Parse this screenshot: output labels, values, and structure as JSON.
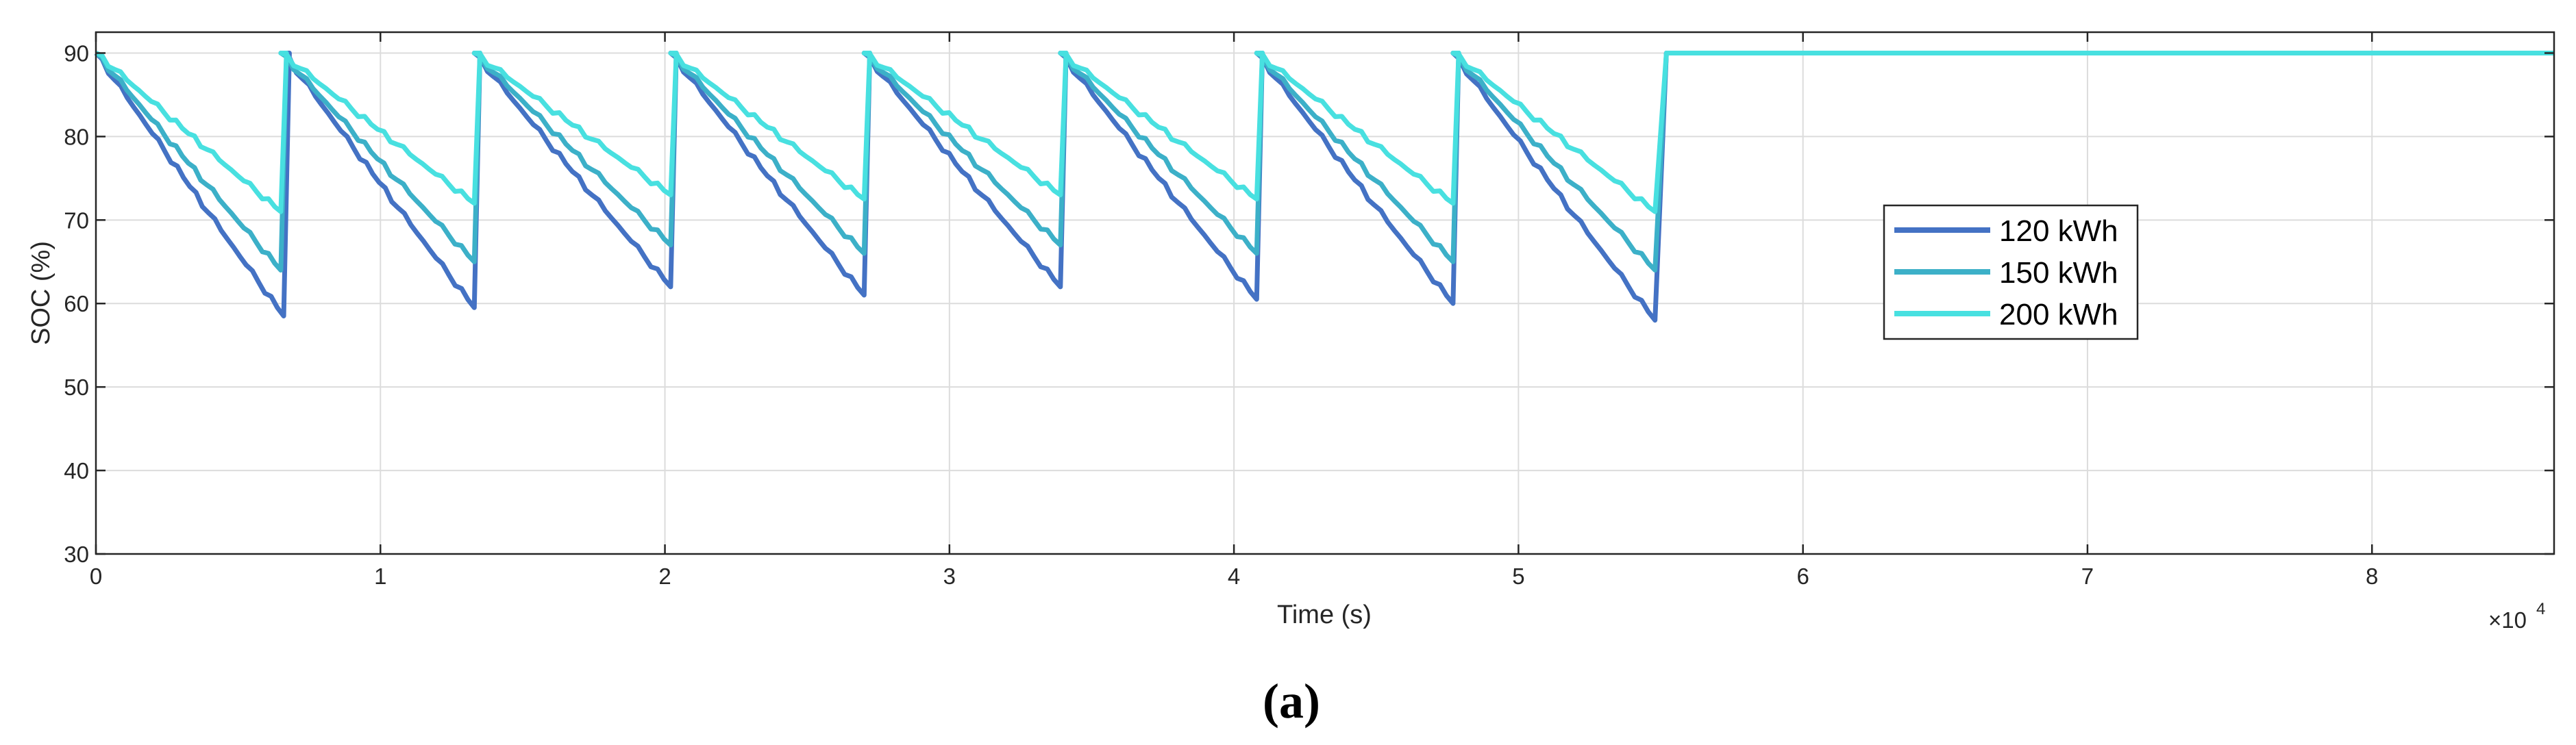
{
  "chart_data": {
    "type": "line",
    "xlabel": "Time (s)",
    "ylabel": "SOC (%)",
    "x_multiplier": "×10",
    "x_multiplier_exp": "4",
    "xlim": [
      0,
      8.64
    ],
    "ylim": [
      30,
      92.5
    ],
    "x_ticks": [
      0,
      1,
      2,
      3,
      4,
      5,
      6,
      7,
      8
    ],
    "y_ticks": [
      30,
      40,
      50,
      60,
      70,
      80,
      90
    ],
    "x_tick_labels": [
      "0",
      "1",
      "2",
      "3",
      "4",
      "5",
      "6",
      "7",
      "8"
    ],
    "y_tick_labels": [
      "30",
      "40",
      "50",
      "60",
      "70",
      "80",
      "90"
    ],
    "grid": true,
    "legend_position": "right-middle",
    "series": [
      {
        "name": "120 kWh",
        "color": "#4472C4",
        "cycles": [
          {
            "start": 0.0,
            "end": 0.66,
            "min": 58.5
          },
          {
            "start": 0.66,
            "end": 1.33,
            "min": 59.5
          },
          {
            "start": 1.33,
            "end": 2.02,
            "min": 62
          },
          {
            "start": 2.02,
            "end": 2.7,
            "min": 61
          },
          {
            "start": 2.7,
            "end": 3.39,
            "min": 62
          },
          {
            "start": 3.39,
            "end": 4.08,
            "min": 60.5
          },
          {
            "start": 4.08,
            "end": 4.77,
            "min": 60
          },
          {
            "start": 4.77,
            "end": 5.48,
            "min": 58
          }
        ],
        "hold_from": 5.5,
        "hold_value": 90
      },
      {
        "name": "150 kWh",
        "color": "#3CB0C8",
        "cycles": [
          {
            "start": 0.0,
            "end": 0.65,
            "min": 64
          },
          {
            "start": 0.65,
            "end": 1.33,
            "min": 65
          },
          {
            "start": 1.33,
            "end": 2.02,
            "min": 67
          },
          {
            "start": 2.02,
            "end": 2.7,
            "min": 66
          },
          {
            "start": 2.7,
            "end": 3.39,
            "min": 67
          },
          {
            "start": 3.39,
            "end": 4.08,
            "min": 66
          },
          {
            "start": 4.08,
            "end": 4.77,
            "min": 65
          },
          {
            "start": 4.77,
            "end": 5.48,
            "min": 64
          }
        ],
        "hold_from": 5.5,
        "hold_value": 90
      },
      {
        "name": "200 kWh",
        "color": "#48E0E0",
        "cycles": [
          {
            "start": 0.0,
            "end": 0.65,
            "min": 71
          },
          {
            "start": 0.65,
            "end": 1.33,
            "min": 72
          },
          {
            "start": 1.33,
            "end": 2.02,
            "min": 73
          },
          {
            "start": 2.02,
            "end": 2.7,
            "min": 72.5
          },
          {
            "start": 2.7,
            "end": 3.39,
            "min": 73
          },
          {
            "start": 3.39,
            "end": 4.08,
            "min": 72.5
          },
          {
            "start": 4.08,
            "end": 4.77,
            "min": 72
          },
          {
            "start": 4.77,
            "end": 5.48,
            "min": 71
          }
        ],
        "hold_from": 5.5,
        "hold_value": 90
      }
    ]
  },
  "caption": "(a)"
}
